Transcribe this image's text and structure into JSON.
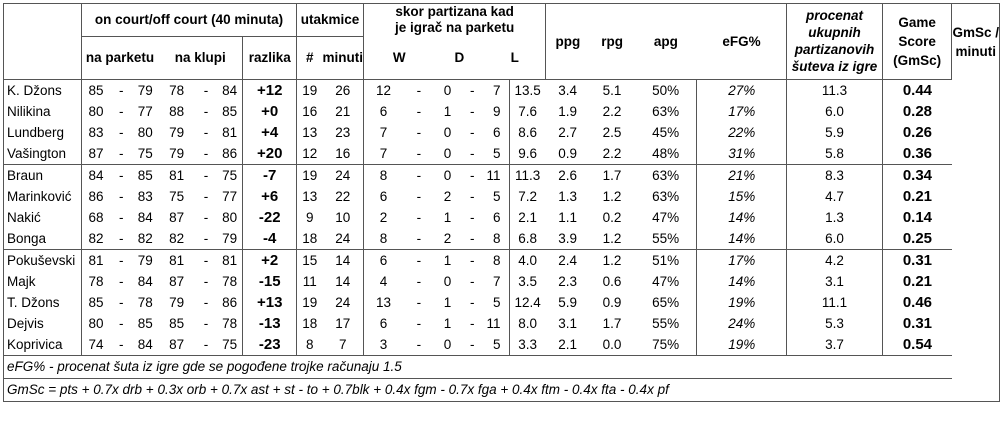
{
  "headers": {
    "oncourt": "on court/off court (40 minuta)",
    "na_parketu": "na parketu",
    "na_klupi": "na klupi",
    "razlika": "razlika",
    "utakmice": "utakmice",
    "num": "#",
    "minuti": "minuti",
    "skor_line1": "skor partizana kad",
    "skor_line2": "je igrač na parketu",
    "W": "W",
    "D": "D",
    "L": "L",
    "ppg": "ppg",
    "rpg": "rpg",
    "apg": "apg",
    "efg": "eFG%",
    "procenat_1": "procenat",
    "procenat_2": "ukupnih",
    "procenat_3": "partizanovih",
    "procenat_4": "šuteva iz igre",
    "gs_1": "Game",
    "gs_2": "Score",
    "gs_3": "(GmSc)",
    "gsm_1": "GmSc /",
    "gsm_2": "minuti"
  },
  "rows": [
    {
      "name": "K. Džons",
      "p1": "85",
      "p2": "79",
      "k1": "78",
      "k2": "84",
      "raz": "+12",
      "g": "19",
      "min": "26",
      "w": "12",
      "d": "0",
      "l": "7",
      "ppg": "13.5",
      "rpg": "3.4",
      "apg": "5.1",
      "efg": "50%",
      "pct": "27%",
      "gs": "11.3",
      "gsm": "0.44"
    },
    {
      "name": "Nilikina",
      "p1": "80",
      "p2": "77",
      "k1": "88",
      "k2": "85",
      "raz": "+0",
      "g": "16",
      "min": "21",
      "w": "6",
      "d": "1",
      "l": "9",
      "ppg": "7.6",
      "rpg": "1.9",
      "apg": "2.2",
      "efg": "63%",
      "pct": "17%",
      "gs": "6.0",
      "gsm": "0.28"
    },
    {
      "name": "Lundberg",
      "p1": "83",
      "p2": "80",
      "k1": "79",
      "k2": "81",
      "raz": "+4",
      "g": "13",
      "min": "23",
      "w": "7",
      "d": "0",
      "l": "6",
      "ppg": "8.6",
      "rpg": "2.7",
      "apg": "2.5",
      "efg": "45%",
      "pct": "22%",
      "gs": "5.9",
      "gsm": "0.26"
    },
    {
      "name": "Vašington",
      "p1": "87",
      "p2": "75",
      "k1": "79",
      "k2": "86",
      "raz": "+20",
      "g": "12",
      "min": "16",
      "w": "7",
      "d": "0",
      "l": "5",
      "ppg": "9.6",
      "rpg": "0.9",
      "apg": "2.2",
      "efg": "48%",
      "pct": "31%",
      "gs": "5.8",
      "gsm": "0.36"
    },
    {
      "name": "Braun",
      "p1": "84",
      "p2": "85",
      "k1": "81",
      "k2": "75",
      "raz": "-7",
      "g": "19",
      "min": "24",
      "w": "8",
      "d": "0",
      "l": "11",
      "ppg": "11.3",
      "rpg": "2.6",
      "apg": "1.7",
      "efg": "63%",
      "pct": "21%",
      "gs": "8.3",
      "gsm": "0.34"
    },
    {
      "name": "Marinković",
      "p1": "86",
      "p2": "83",
      "k1": "75",
      "k2": "77",
      "raz": "+6",
      "g": "13",
      "min": "22",
      "w": "6",
      "d": "2",
      "l": "5",
      "ppg": "7.2",
      "rpg": "1.3",
      "apg": "1.2",
      "efg": "63%",
      "pct": "15%",
      "gs": "4.7",
      "gsm": "0.21"
    },
    {
      "name": "Nakić",
      "p1": "68",
      "p2": "84",
      "k1": "87",
      "k2": "80",
      "raz": "-22",
      "g": "9",
      "min": "10",
      "w": "2",
      "d": "1",
      "l": "6",
      "ppg": "2.1",
      "rpg": "1.1",
      "apg": "0.2",
      "efg": "47%",
      "pct": "14%",
      "gs": "1.3",
      "gsm": "0.14"
    },
    {
      "name": "Bonga",
      "p1": "82",
      "p2": "82",
      "k1": "82",
      "k2": "79",
      "raz": "-4",
      "g": "18",
      "min": "24",
      "w": "8",
      "d": "2",
      "l": "8",
      "ppg": "6.8",
      "rpg": "3.9",
      "apg": "1.2",
      "efg": "55%",
      "pct": "14%",
      "gs": "6.0",
      "gsm": "0.25"
    },
    {
      "name": "Pokuševski",
      "p1": "81",
      "p2": "79",
      "k1": "81",
      "k2": "81",
      "raz": "+2",
      "g": "15",
      "min": "14",
      "w": "6",
      "d": "1",
      "l": "8",
      "ppg": "4.0",
      "rpg": "2.4",
      "apg": "1.2",
      "efg": "51%",
      "pct": "17%",
      "gs": "4.2",
      "gsm": "0.31"
    },
    {
      "name": "Majk",
      "p1": "78",
      "p2": "84",
      "k1": "87",
      "k2": "78",
      "raz": "-15",
      "g": "11",
      "min": "14",
      "w": "4",
      "d": "0",
      "l": "7",
      "ppg": "3.5",
      "rpg": "2.3",
      "apg": "0.6",
      "efg": "47%",
      "pct": "14%",
      "gs": "3.1",
      "gsm": "0.21"
    },
    {
      "name": "T. Džons",
      "p1": "85",
      "p2": "78",
      "k1": "79",
      "k2": "86",
      "raz": "+13",
      "g": "19",
      "min": "24",
      "w": "13",
      "d": "1",
      "l": "5",
      "ppg": "12.4",
      "rpg": "5.9",
      "apg": "0.9",
      "efg": "65%",
      "pct": "19%",
      "gs": "11.1",
      "gsm": "0.46"
    },
    {
      "name": "Dejvis",
      "p1": "80",
      "p2": "85",
      "k1": "85",
      "k2": "78",
      "raz": "-13",
      "g": "18",
      "min": "17",
      "w": "6",
      "d": "1",
      "l": "11",
      "ppg": "8.0",
      "rpg": "3.1",
      "apg": "1.7",
      "efg": "55%",
      "pct": "24%",
      "gs": "5.3",
      "gsm": "0.31"
    },
    {
      "name": "Koprivica",
      "p1": "74",
      "p2": "84",
      "k1": "87",
      "k2": "75",
      "raz": "-23",
      "g": "8",
      "min": "7",
      "w": "3",
      "d": "0",
      "l": "5",
      "ppg": "3.3",
      "rpg": "2.1",
      "apg": "0.0",
      "efg": "75%",
      "pct": "19%",
      "gs": "3.7",
      "gsm": "0.54"
    }
  ],
  "footnotes": {
    "efg": "eFG% - procenat šuta iz igre gde se pogođene trojke računaju 1.5",
    "gmsc": "GmSc = pts + 0.7x drb + 0.3x orb + 0.7x ast + st - to + 0.7blk + 0.4x fgm - 0.7x fga + 0.4x ftm - 0.4x fta - 0.4x pf"
  },
  "separator": "-"
}
